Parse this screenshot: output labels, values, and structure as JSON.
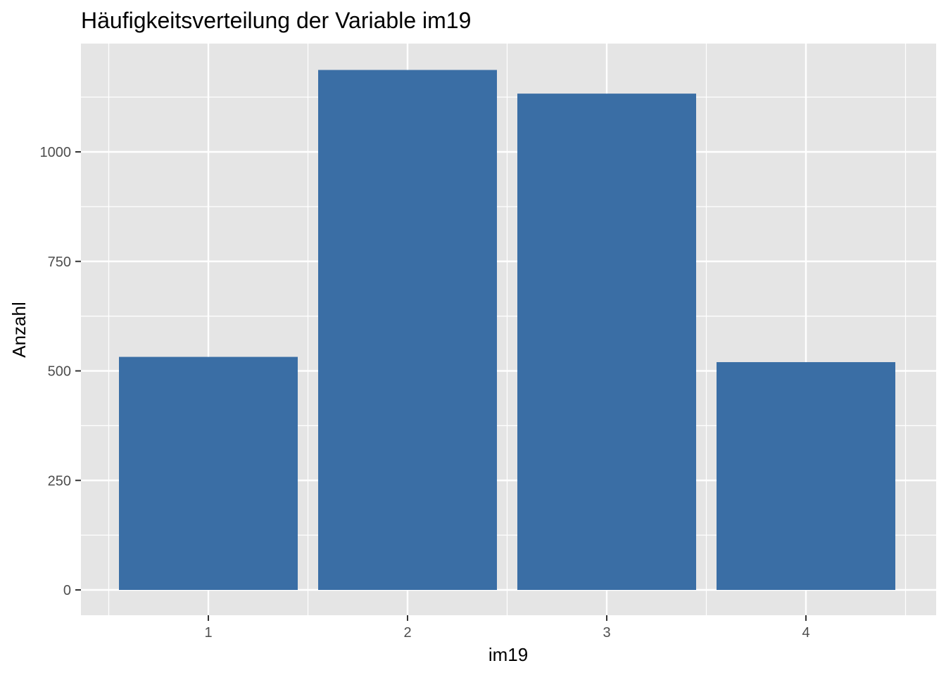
{
  "chart_data": {
    "type": "bar",
    "title": "Häufigkeitsverteilung der Variable im19",
    "xlabel": "im19",
    "ylabel": "Anzahl",
    "categories": [
      "1",
      "2",
      "3",
      "4"
    ],
    "values": [
      532,
      1187,
      1133,
      520
    ],
    "ylim": [
      0,
      1250
    ],
    "yticks": [
      0,
      250,
      500,
      750,
      1000
    ],
    "grid": true,
    "legend": "none",
    "colors": {
      "bar": "#3A6EA5",
      "panel": "#E5E5E5",
      "grid": "#FFFFFF",
      "tick": "#333333"
    }
  }
}
